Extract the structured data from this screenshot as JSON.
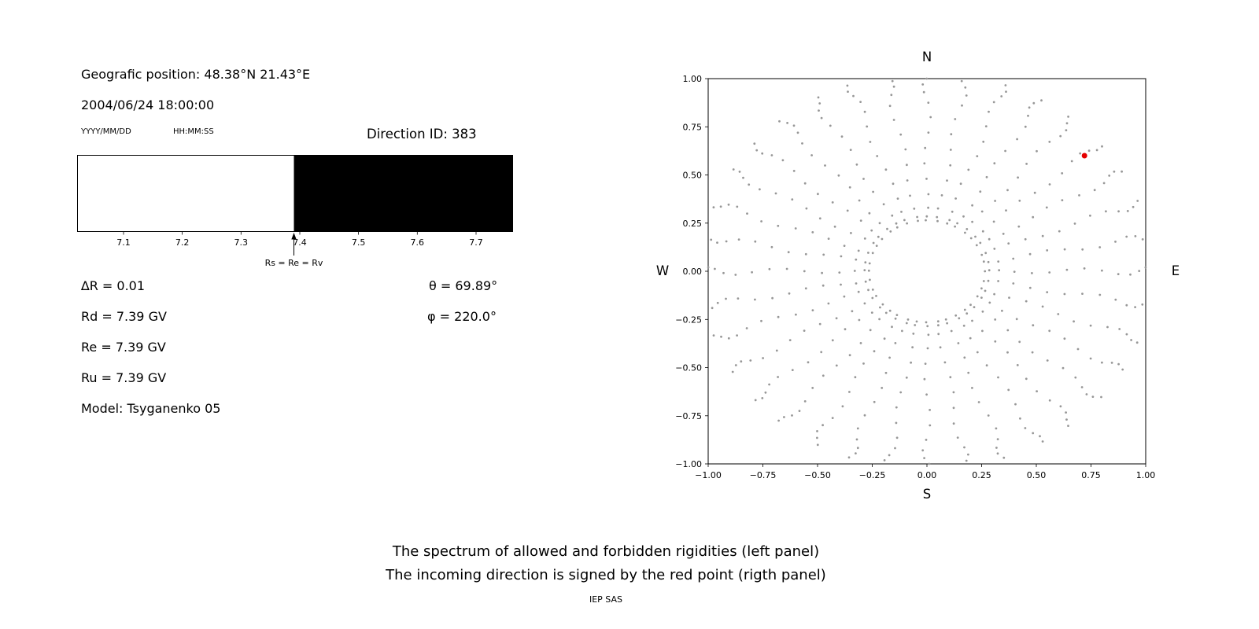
{
  "header": {
    "geo_position": "Geografic position: 48.38°N 21.43°E",
    "datetime": "2004/06/24 18:00:00",
    "date_format": "YYYY/MM/DD",
    "time_format": "HH:MM:SS",
    "direction_id": "Direction ID: 383"
  },
  "params": {
    "delta_r": "∆R = 0.01",
    "rd": "Rd = 7.39 GV",
    "re": "Re = 7.39 GV",
    "ru": "Ru = 7.39 GV",
    "model": "Model: Tsyganenko 05",
    "theta": "θ = 69.89°",
    "phi": "φ = 220.0°"
  },
  "captions": {
    "line1": "The spectrum of allowed and forbidden rigidities (left panel)",
    "line2": "The incoming direction is signed by the red point (rigth panel)",
    "credit": "IEP SAS"
  },
  "chart_data": [
    {
      "type": "bar",
      "title": "Rigidity spectrum: allowed (white) vs forbidden (black)",
      "xlim": [
        7.021,
        7.763
      ],
      "boundary": 7.39,
      "allowed_color": "#ffffff",
      "forbidden_color": "#000000",
      "ticks": [
        7.1,
        7.2,
        7.3,
        7.4,
        7.5,
        7.6,
        7.7
      ],
      "tick_labels": [
        "7.1",
        "7.2",
        "7.3",
        "7.4",
        "7.5",
        "7.6",
        "7.7"
      ],
      "arrow_x": 7.39,
      "arrow_label": "Rs = Re = Rv"
    },
    {
      "type": "scatter",
      "title": "Incoming / asymptotic directions",
      "compass": {
        "north": "N",
        "south": "S",
        "west": "W",
        "east": "E"
      },
      "xlim": [
        -1,
        1
      ],
      "ylim": [
        -1,
        1
      ],
      "xticks": [
        -1,
        -0.75,
        -0.5,
        -0.25,
        0,
        0.25,
        0.5,
        0.75,
        1
      ],
      "xtick_labels": [
        "−1.00",
        "−0.75",
        "−0.50",
        "−0.25",
        "0.00",
        "0.25",
        "0.50",
        "0.75",
        "1.00"
      ],
      "yticks": [
        -1,
        -0.75,
        -0.5,
        -0.25,
        0,
        0.25,
        0.5,
        0.75,
        1
      ],
      "ytick_labels": [
        "−1.00",
        "−0.75",
        "−0.50",
        "−0.25",
        "0.00",
        "0.25",
        "0.50",
        "0.75",
        "1.00"
      ],
      "grid": false,
      "spokes": {
        "count": 36,
        "radii": [
          0.265,
          0.285,
          0.33,
          0.4,
          0.48,
          0.56,
          0.64,
          0.72,
          0.8,
          0.875,
          0.93,
          0.97,
          1.0,
          1.03
        ],
        "color": "#979797",
        "dot_radius": 1.4,
        "angle_jitter_deg": 1.2
      },
      "red_point": {
        "x": 0.72,
        "y": 0.6,
        "color": "#e50000",
        "radius": 3.5
      }
    }
  ]
}
